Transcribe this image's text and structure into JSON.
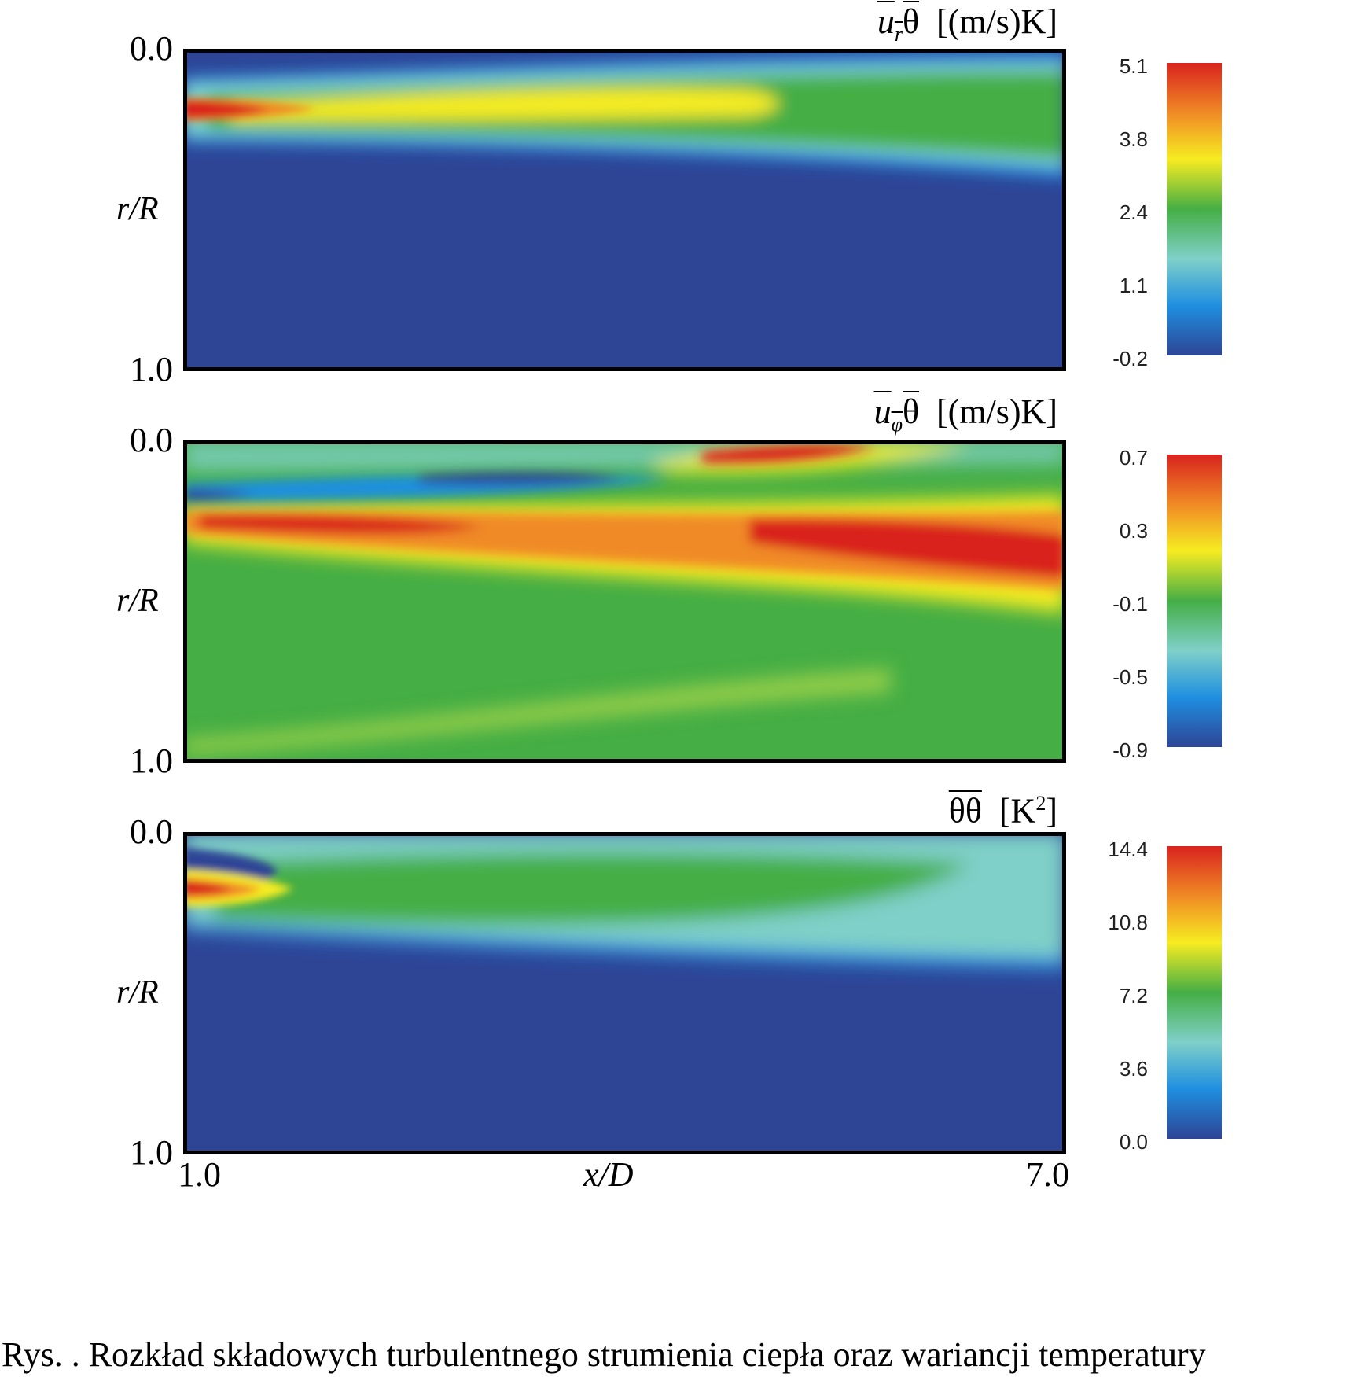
{
  "chart_data": [
    {
      "type": "heatmap",
      "title_symbol": "u",
      "title_sub": "r",
      "title_theta": "θ",
      "title_units": "[(m/s)K]",
      "ylabel": "r/R",
      "yticks": [
        "0.0",
        "1.0"
      ],
      "ylim": [
        0.0,
        1.0
      ],
      "xlim": [
        1.0,
        7.0
      ],
      "colorbar_ticks": [
        "5.1",
        "3.8",
        "2.4",
        "1.1",
        "-0.2"
      ],
      "colorbar_range": [
        -0.2,
        5.1
      ],
      "colormap": [
        "#2e4596",
        "#1f8fe0",
        "#7fd0c8",
        "#45ae45",
        "#f6ec21",
        "#f08a25",
        "#d9231f"
      ]
    },
    {
      "type": "heatmap",
      "title_symbol": "u",
      "title_sub": "φ",
      "title_theta": "θ",
      "title_units": "[(m/s)K]",
      "ylabel": "r/R",
      "yticks": [
        "0.0",
        "1.0"
      ],
      "ylim": [
        0.0,
        1.0
      ],
      "xlim": [
        1.0,
        7.0
      ],
      "colorbar_ticks": [
        "0.7",
        "0.3",
        "-0.1",
        "-0.5",
        "-0.9"
      ],
      "colorbar_range": [
        -0.9,
        0.7
      ],
      "colormap": [
        "#2e4596",
        "#1f8fe0",
        "#7fd0c8",
        "#45ae45",
        "#f6ec21",
        "#f08a25",
        "#d9231f"
      ]
    },
    {
      "type": "heatmap",
      "title_symbol": "θθ",
      "title_units": "[K",
      "title_sup": "2",
      "title_close": "]",
      "ylabel": "r/R",
      "yticks": [
        "0.0",
        "1.0"
      ],
      "ylim": [
        0.0,
        1.0
      ],
      "xlim": [
        1.0,
        7.0
      ],
      "xlabel": "x/D",
      "xticks": [
        "1.0",
        "7.0"
      ],
      "colorbar_ticks": [
        "14.4",
        "10.8",
        "7.2",
        "3.6",
        "0.0"
      ],
      "colorbar_range": [
        0.0,
        14.4
      ],
      "colormap": [
        "#2e4596",
        "#1f8fe0",
        "#7fd0c8",
        "#45ae45",
        "#f6ec21",
        "#f08a25",
        "#d9231f"
      ]
    }
  ],
  "caption": "Rys. . Rozkład składowych turbulentnego strumienia ciepła oraz wariancji temperatury"
}
